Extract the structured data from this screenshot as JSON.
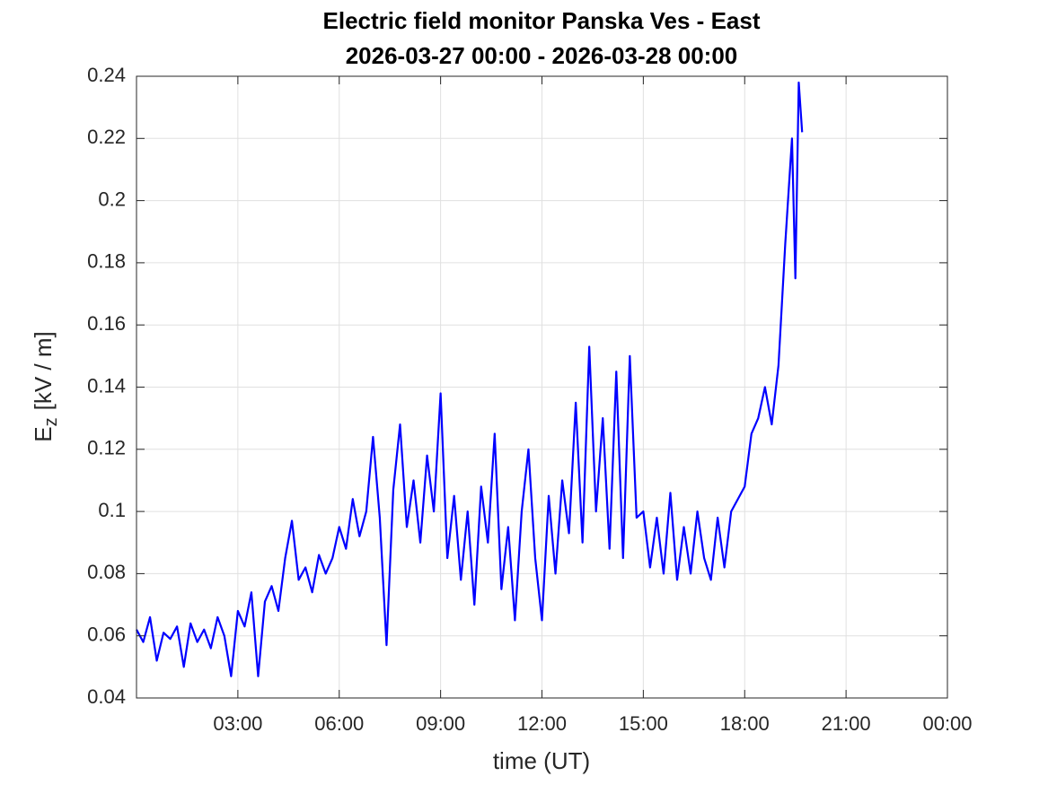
{
  "chart_data": {
    "type": "line",
    "title": "Electric field monitor Panska Ves - East",
    "subtitle": "2026-03-27 00:00 - 2026-03-28 00:00",
    "x_label": "time (UT)",
    "y_label": {
      "main": "E",
      "sub": "z",
      "unit": "[kV / m]"
    },
    "x": [
      0,
      0.2,
      0.4,
      0.6,
      0.8,
      1,
      1.2,
      1.4,
      1.6,
      1.8,
      2,
      2.2,
      2.4,
      2.6,
      2.8,
      3,
      3.2,
      3.4,
      3.6,
      3.8,
      4,
      4.2,
      4.4,
      4.6,
      4.8,
      5,
      5.2,
      5.4,
      5.6,
      5.8,
      6,
      6.2,
      6.4,
      6.6,
      6.8,
      7,
      7.2,
      7.4,
      7.6,
      7.8,
      8,
      8.2,
      8.4,
      8.6,
      8.8,
      9,
      9.2,
      9.4,
      9.6,
      9.8,
      10,
      10.2,
      10.4,
      10.6,
      10.8,
      11,
      11.2,
      11.4,
      11.6,
      11.8,
      12,
      12.2,
      12.4,
      12.6,
      12.8,
      13,
      13.2,
      13.4,
      13.6,
      13.8,
      14,
      14.2,
      14.4,
      14.6,
      14.8,
      15,
      15.2,
      15.4,
      15.6,
      15.8,
      16,
      16.2,
      16.4,
      16.6,
      16.8,
      17,
      17.2,
      17.4,
      17.6,
      17.8,
      18,
      18.2,
      18.4,
      18.6,
      18.8,
      19,
      19.2,
      19.4,
      19.5,
      19.6,
      19.7
    ],
    "series": [
      {
        "name": "Ez",
        "color": "#0000ff",
        "values": [
          0.062,
          0.058,
          0.066,
          0.052,
          0.061,
          0.059,
          0.063,
          0.05,
          0.064,
          0.058,
          0.062,
          0.056,
          0.066,
          0.06,
          0.047,
          0.068,
          0.063,
          0.074,
          0.047,
          0.071,
          0.076,
          0.068,
          0.085,
          0.097,
          0.078,
          0.082,
          0.074,
          0.086,
          0.08,
          0.085,
          0.095,
          0.088,
          0.104,
          0.092,
          0.1,
          0.124,
          0.098,
          0.057,
          0.107,
          0.128,
          0.095,
          0.11,
          0.09,
          0.118,
          0.1,
          0.138,
          0.085,
          0.105,
          0.078,
          0.1,
          0.07,
          0.108,
          0.09,
          0.125,
          0.075,
          0.095,
          0.065,
          0.1,
          0.12,
          0.085,
          0.065,
          0.105,
          0.08,
          0.11,
          0.093,
          0.135,
          0.09,
          0.153,
          0.1,
          0.13,
          0.088,
          0.145,
          0.085,
          0.15,
          0.098,
          0.1,
          0.082,
          0.098,
          0.08,
          0.106,
          0.078,
          0.095,
          0.08,
          0.1,
          0.085,
          0.078,
          0.098,
          0.082,
          0.1,
          0.104,
          0.108,
          0.125,
          0.13,
          0.14,
          0.128,
          0.147,
          0.186,
          0.22,
          0.175,
          0.238,
          0.222
        ]
      }
    ],
    "xlim": [
      0,
      24
    ],
    "xticks": [
      {
        "value": 3,
        "label": "03:00"
      },
      {
        "value": 6,
        "label": "06:00"
      },
      {
        "value": 9,
        "label": "09:00"
      },
      {
        "value": 12,
        "label": "12:00"
      },
      {
        "value": 15,
        "label": "15:00"
      },
      {
        "value": 18,
        "label": "18:00"
      },
      {
        "value": 21,
        "label": "21:00"
      },
      {
        "value": 24,
        "label": "00:00"
      }
    ],
    "ylim": [
      0.04,
      0.24
    ],
    "yticks": [
      0.04,
      0.06,
      0.08,
      0.1,
      0.12,
      0.14,
      0.16,
      0.18,
      0.2,
      0.22,
      0.24
    ],
    "grid": true
  }
}
